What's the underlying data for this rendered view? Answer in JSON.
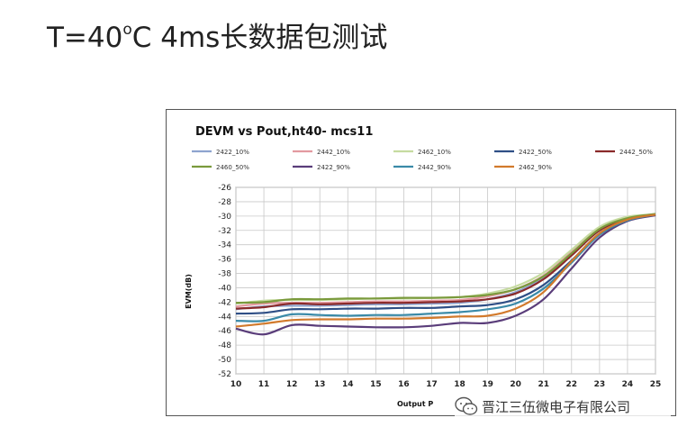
{
  "slide": {
    "title_prefix": "T=40",
    "title_degree": "o",
    "title_suffix": "C 4ms长数据包测试"
  },
  "watermark": {
    "text": "晋江三伍微电子有限公司",
    "icon": "wechat-icon"
  },
  "chart_data": {
    "type": "line",
    "title": "DEVM vs Pout,ht40- mcs11",
    "xlabel": "Output Power(dBm)",
    "xlabel_visible": "Output  P",
    "ylabel": "EVM(dB)",
    "xlim": [
      10,
      25
    ],
    "ylim": [
      -52,
      -26
    ],
    "x_ticks": [
      "10",
      "11",
      "12",
      "13",
      "14",
      "15",
      "16",
      "17",
      "18",
      "19",
      "20",
      "21",
      "22",
      "23",
      "24",
      "25"
    ],
    "y_ticks": [
      "-26",
      "-28",
      "-30",
      "-32",
      "-34",
      "-36",
      "-38",
      "-40",
      "-42",
      "-44",
      "-46",
      "-48",
      "-50",
      "-52"
    ],
    "x": [
      10,
      11,
      12,
      13,
      14,
      15,
      16,
      17,
      18,
      19,
      20,
      21,
      22,
      23,
      24,
      25
    ],
    "series": [
      {
        "name": "2422_10%",
        "color": "#8ea4cf",
        "values": [
          -43.0,
          -42.6,
          -42.5,
          -42.5,
          -42.4,
          -42.3,
          -42.3,
          -42.2,
          -42.1,
          -41.6,
          -40.6,
          -38.6,
          -35.3,
          -31.9,
          -30.3,
          -29.8
        ]
      },
      {
        "name": "2442_10%",
        "color": "#e39aa0",
        "values": [
          -42.6,
          -42.2,
          -42.1,
          -42.1,
          -42.0,
          -41.9,
          -41.9,
          -41.8,
          -41.7,
          -41.2,
          -40.2,
          -38.3,
          -35.0,
          -31.7,
          -30.2,
          -29.8
        ]
      },
      {
        "name": "2462_10%",
        "color": "#c6dba0",
        "values": [
          -42.2,
          -41.8,
          -41.7,
          -41.7,
          -41.6,
          -41.5,
          -41.5,
          -41.4,
          -41.3,
          -40.8,
          -39.8,
          -37.9,
          -34.7,
          -31.5,
          -30.1,
          -29.8
        ]
      },
      {
        "name": "2422_50%",
        "color": "#2f4f86",
        "values": [
          -43.6,
          -43.5,
          -43.0,
          -43.0,
          -42.9,
          -42.9,
          -42.8,
          -42.8,
          -42.6,
          -42.4,
          -41.6,
          -39.6,
          -36.2,
          -32.4,
          -30.5,
          -29.8
        ]
      },
      {
        "name": "2442_50%",
        "color": "#8a2a2a",
        "values": [
          -42.9,
          -42.7,
          -42.2,
          -42.3,
          -42.2,
          -42.1,
          -42.1,
          -42.0,
          -41.9,
          -41.6,
          -40.8,
          -38.8,
          -35.5,
          -32.0,
          -30.4,
          -29.8
        ]
      },
      {
        "name": "2460_50%",
        "color": "#7a9a3c",
        "values": [
          -42.1,
          -42.0,
          -41.6,
          -41.6,
          -41.5,
          -41.5,
          -41.4,
          -41.4,
          -41.3,
          -41.0,
          -40.2,
          -38.4,
          -35.2,
          -31.8,
          -30.3,
          -29.7
        ]
      },
      {
        "name": "2422_90%",
        "color": "#5a3d7a",
        "values": [
          -45.7,
          -46.5,
          -45.2,
          -45.3,
          -45.4,
          -45.5,
          -45.5,
          -45.3,
          -44.9,
          -44.9,
          -43.9,
          -41.6,
          -37.3,
          -33.0,
          -30.7,
          -29.9
        ]
      },
      {
        "name": "2442_90%",
        "color": "#3a8aa8",
        "values": [
          -44.6,
          -44.6,
          -43.7,
          -43.8,
          -43.9,
          -43.8,
          -43.8,
          -43.6,
          -43.4,
          -43.0,
          -42.2,
          -40.1,
          -36.5,
          -32.6,
          -30.6,
          -29.8
        ]
      },
      {
        "name": "2462_90%",
        "color": "#d27a2c",
        "values": [
          -45.4,
          -45.0,
          -44.5,
          -44.4,
          -44.4,
          -44.3,
          -44.3,
          -44.2,
          -44.0,
          -43.9,
          -42.9,
          -40.6,
          -36.3,
          -32.4,
          -30.5,
          -29.8
        ]
      }
    ],
    "grid": true,
    "legend_position": "top"
  }
}
